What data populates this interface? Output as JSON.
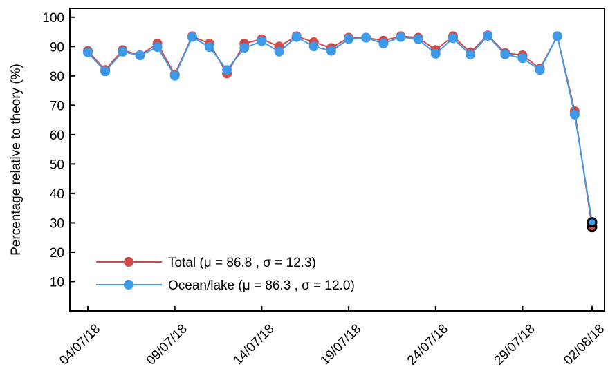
{
  "chart_data": {
    "type": "line",
    "x": [
      "04/07/18",
      "05/07/18",
      "06/07/18",
      "07/07/18",
      "08/07/18",
      "09/07/18",
      "10/07/18",
      "11/07/18",
      "12/07/18",
      "13/07/18",
      "14/07/18",
      "15/07/18",
      "16/07/18",
      "17/07/18",
      "18/07/18",
      "19/07/18",
      "20/07/18",
      "21/07/18",
      "22/07/18",
      "23/07/18",
      "24/07/18",
      "25/07/18",
      "26/07/18",
      "27/07/18",
      "28/07/18",
      "29/07/18",
      "30/07/18",
      "31/07/18",
      "01/08/18",
      "02/08/18"
    ],
    "series": [
      {
        "name": "Total (μ = 86.8 , σ = 12.3)",
        "color": "#d24b4b",
        "values": [
          88.5,
          82.0,
          88.8,
          87.0,
          91.0,
          80.5,
          93.5,
          91.0,
          80.8,
          91.0,
          92.5,
          90.0,
          93.5,
          91.5,
          89.5,
          93.0,
          93.0,
          92.0,
          93.5,
          93.0,
          88.8,
          93.5,
          88.0,
          93.8,
          87.8,
          87.0,
          82.5,
          93.5,
          68.0,
          28.5
        ]
      },
      {
        "name": "Ocean/lake (μ = 86.3 , σ = 12.0)",
        "color": "#3d9ae8",
        "values": [
          88.0,
          81.5,
          88.2,
          87.0,
          89.8,
          80.0,
          93.2,
          89.8,
          82.0,
          89.5,
          91.8,
          88.2,
          93.2,
          90.0,
          88.5,
          92.5,
          93.0,
          91.0,
          93.2,
          92.5,
          87.5,
          92.8,
          87.2,
          93.6,
          87.3,
          86.0,
          82.0,
          93.5,
          66.8,
          30.2
        ]
      }
    ],
    "x_tick_labels": [
      "04/07/18",
      "09/07/18",
      "14/07/18",
      "19/07/18",
      "24/07/18",
      "29/07/18",
      "02/08/18"
    ],
    "y_ticks": [
      10,
      20,
      30,
      40,
      50,
      60,
      70,
      80,
      90,
      100
    ],
    "ylim": [
      0,
      103
    ],
    "xlabel": "",
    "ylabel": "Percentage relative to theory (%)",
    "title": "",
    "grid": false,
    "legend_position": "bottom-left"
  }
}
